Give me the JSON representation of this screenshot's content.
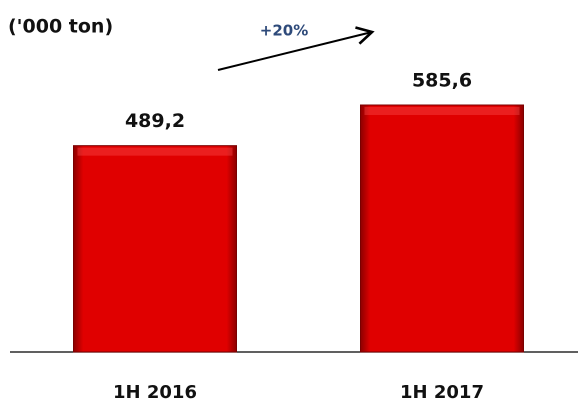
{
  "chart_data": {
    "type": "bar",
    "title": "('000 ton)",
    "categories": [
      "1H 2016",
      "1H 2017"
    ],
    "values": [
      489.2,
      585.6
    ],
    "value_labels": [
      "489,2",
      "585,6"
    ],
    "color": "#d40000",
    "annotation": "+20%"
  }
}
